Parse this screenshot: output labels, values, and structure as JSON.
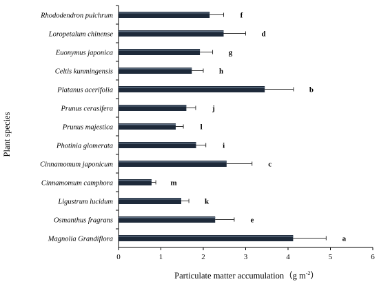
{
  "chart_data": {
    "type": "bar",
    "orientation": "horizontal",
    "title": "",
    "xlabel": "Particulate matter accumulation（g m",
    "xlabel_sup": "-2",
    "xlabel_close": "）",
    "ylabel": "Plant species",
    "xlim": [
      0,
      6
    ],
    "xticks": [
      "0",
      "1",
      "2",
      "3",
      "4",
      "5",
      "6"
    ],
    "bar_color": "#1e2a3a",
    "categories": [
      "Rhododendron pulchrum",
      "Loropetalum chinense",
      "Euonymus japonica",
      "Celtis kunmingensis",
      "Platanus acerifolia",
      "Prunus cerasifera",
      "Prunus majestica",
      "Photinia glomerata",
      "Cinnamomum japonicum",
      "Cinnamomum camphora",
      "Ligustrum lucidum",
      "Osmanthus fragrans",
      "Magnolia Grandiflora"
    ],
    "values": [
      2.15,
      2.48,
      1.92,
      1.73,
      3.45,
      1.6,
      1.35,
      1.83,
      2.55,
      0.78,
      1.48,
      2.28,
      4.12
    ],
    "errors": [
      0.33,
      0.52,
      0.3,
      0.27,
      0.68,
      0.22,
      0.18,
      0.23,
      0.6,
      0.1,
      0.18,
      0.45,
      0.78
    ],
    "significance_letters": [
      "f",
      "d",
      "g",
      "h",
      "b",
      "j",
      "l",
      "i",
      "c",
      "m",
      "k",
      "e",
      "a"
    ],
    "grid": false,
    "legend": "none"
  }
}
